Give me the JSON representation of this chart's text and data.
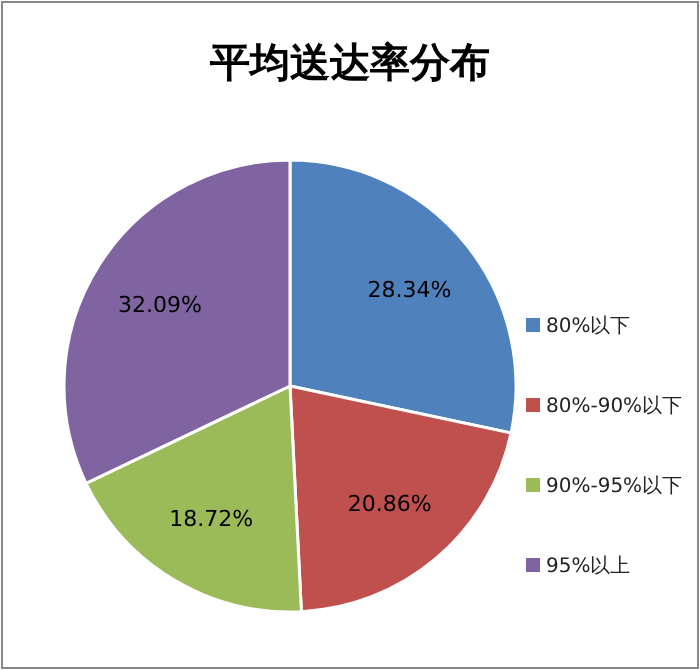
{
  "chart_data": {
    "type": "pie",
    "title": "平均送达率分布",
    "categories": [
      "80%以下",
      "80%-90%以下",
      "90%-95%以下",
      "95%以上"
    ],
    "values": [
      28.34,
      20.86,
      18.72,
      32.09
    ],
    "colors": [
      "#4f81bd",
      "#c0504d",
      "#9bbb59",
      "#8064a2"
    ],
    "value_labels": [
      "28.34%",
      "20.86%",
      "18.72%",
      "32.09%"
    ],
    "legend": "right"
  }
}
